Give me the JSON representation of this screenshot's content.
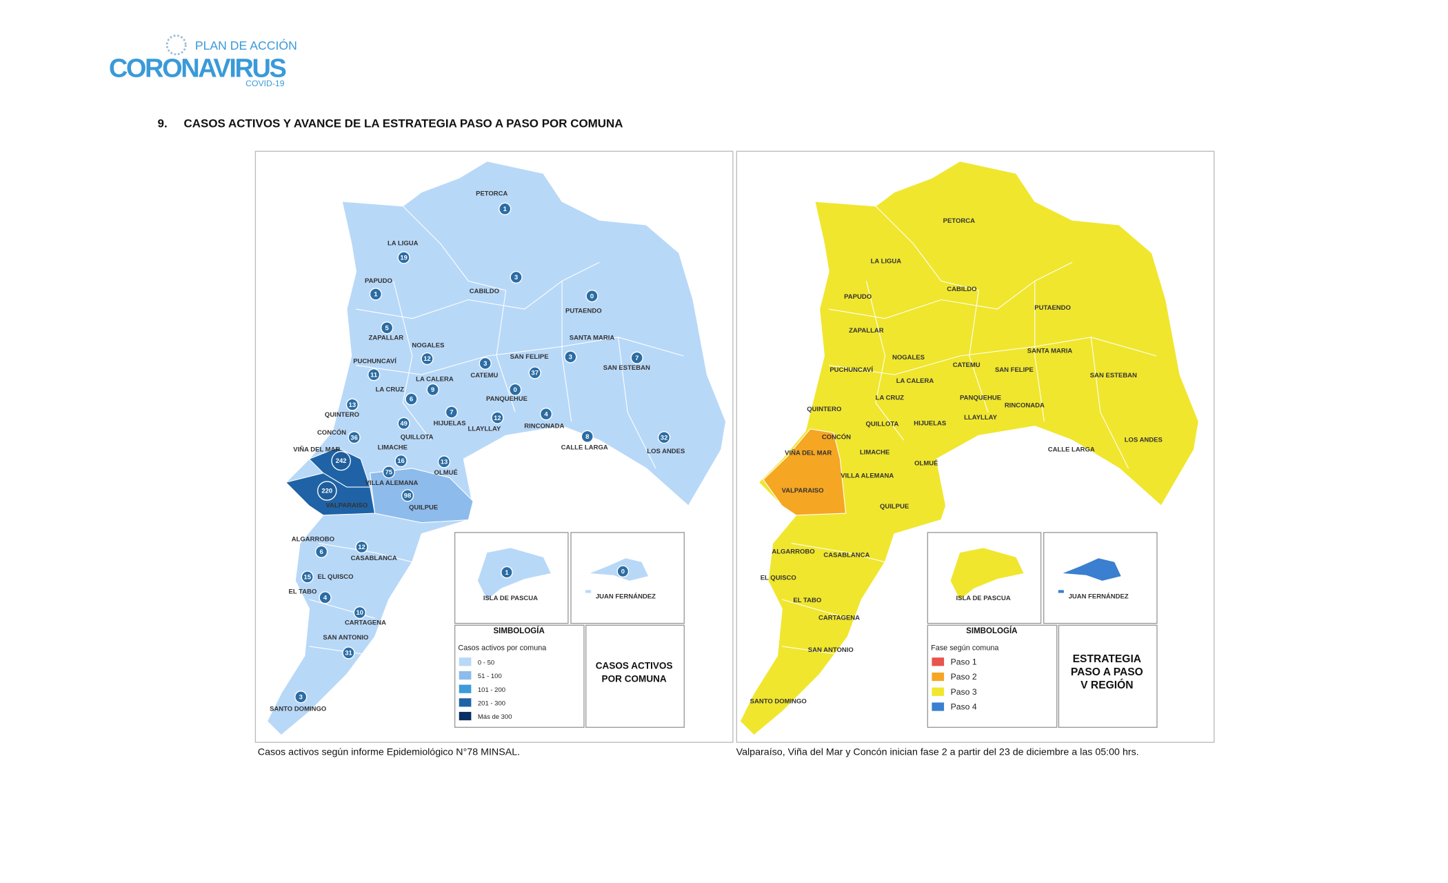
{
  "header": {
    "logo_top": "PLAN DE ACCIÓN",
    "logo_main": "CORONAVIRUS",
    "logo_sub": "COVID-19"
  },
  "section": {
    "number": "9.",
    "title": "CASOS ACTIVOS Y AVANCE DE LA ESTRATEGIA PASO A PASO POR COMUNA"
  },
  "comunas": [
    {
      "name": "PETORCA",
      "cases": 1
    },
    {
      "name": "LA LIGUA",
      "cases": 19
    },
    {
      "name": "PAPUDO",
      "cases": 1
    },
    {
      "name": "CABILDO",
      "cases": 3
    },
    {
      "name": "PUTAENDO",
      "cases": 0
    },
    {
      "name": "ZAPALLAR",
      "cases": 5
    },
    {
      "name": "NOGALES",
      "cases": 12
    },
    {
      "name": "PUCHUNCAVÍ",
      "cases": 11
    },
    {
      "name": "CATEMU",
      "cases": 3
    },
    {
      "name": "SAN FELIPE",
      "cases": 37
    },
    {
      "name": "SANTA MARIA",
      "cases": 3
    },
    {
      "name": "SAN ESTEBAN",
      "cases": 7
    },
    {
      "name": "LA CALERA",
      "cases": 9
    },
    {
      "name": "LA CRUZ",
      "cases": 6
    },
    {
      "name": "PANQUEHUE",
      "cases": 0
    },
    {
      "name": "QUINTERO",
      "cases": 13
    },
    {
      "name": "HIJUELAS",
      "cases": 7
    },
    {
      "name": "LLAYLLAY",
      "cases": 12
    },
    {
      "name": "RINCONADA",
      "cases": 4
    },
    {
      "name": "CONCÓN",
      "cases": 36
    },
    {
      "name": "QUILLOTA",
      "cases": 49
    },
    {
      "name": "CALLE LARGA",
      "cases": 8
    },
    {
      "name": "LOS ANDES",
      "cases": 32
    },
    {
      "name": "VIÑA DEL MAR",
      "cases": 242
    },
    {
      "name": "LIMACHE",
      "cases": 16
    },
    {
      "name": "OLMUÉ",
      "cases": 13
    },
    {
      "name": "VALPARAISO",
      "cases": 220
    },
    {
      "name": "VILLA ALEMANA",
      "cases": 75
    },
    {
      "name": "QUILPUE",
      "cases": 98
    },
    {
      "name": "ALGARROBO",
      "cases": 6
    },
    {
      "name": "CASABLANCA",
      "cases": 12
    },
    {
      "name": "EL QUISCO",
      "cases": 15
    },
    {
      "name": "EL TABO",
      "cases": 4
    },
    {
      "name": "CARTAGENA",
      "cases": 10
    },
    {
      "name": "SAN ANTONIO",
      "cases": 31
    },
    {
      "name": "SANTO DOMINGO",
      "cases": 3
    }
  ],
  "islands": [
    {
      "name": "ISLA DE PASCUA",
      "cases": 1
    },
    {
      "name": "JUAN FERNÁNDEZ",
      "cases": 0
    }
  ],
  "maps": [
    {
      "legend": {
        "title": "SIMBOLOGÍA",
        "subtitle": "Casos activos por comuna",
        "items": [
          {
            "label": "0 - 50",
            "color": "#b8d8f8"
          },
          {
            "label": "51 - 100",
            "color": "#8dbbec"
          },
          {
            "label": "101 - 200",
            "color": "#3d9bd8"
          },
          {
            "label": "201 - 300",
            "color": "#1f63a6"
          },
          {
            "label": "Más de 300",
            "color": "#0b2e63"
          }
        ]
      },
      "panel_title": [
        "CASOS ACTIVOS",
        "POR COMUNA"
      ],
      "caption": "Casos activos según informe Epidemiológico N°78 MINSAL."
    },
    {
      "legend": {
        "title": "SIMBOLOGÍA",
        "subtitle": "Fase según comuna",
        "items": [
          {
            "label": "Paso 1",
            "color": "#e8544e"
          },
          {
            "label": "Paso 2",
            "color": "#f5a623"
          },
          {
            "label": "Paso 3",
            "color": "#f0e62e"
          },
          {
            "label": "Paso 4",
            "color": "#3a7fd0"
          }
        ]
      },
      "panel_title": [
        "ESTRATEGIA",
        "PASO A PASO",
        "V REGIÓN"
      ],
      "caption": "Valparaíso, Viña del Mar y Concón inician fase 2 a partir del 23 de diciembre a las 05:00 hrs."
    }
  ]
}
